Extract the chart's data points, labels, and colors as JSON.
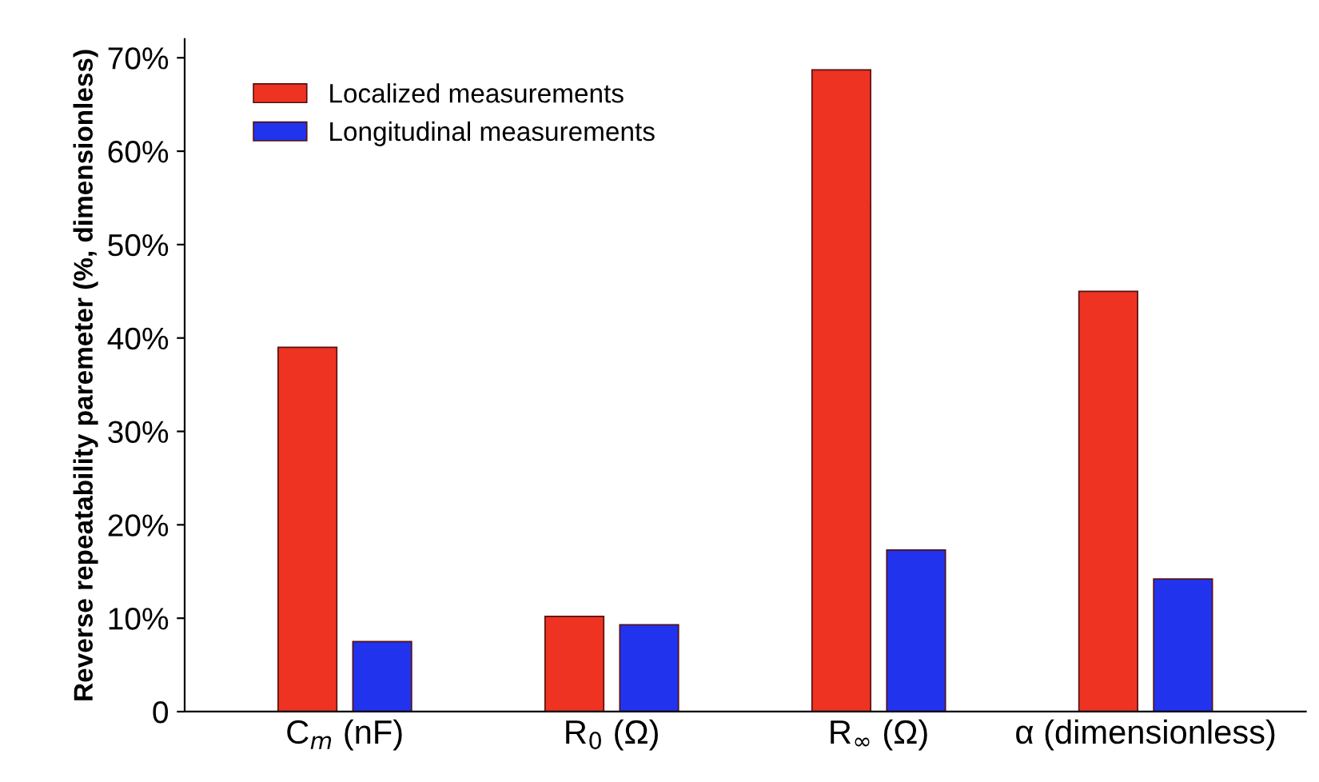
{
  "chart_data": {
    "type": "bar",
    "ylabel": "Reverse repeatability paremeter (%, dimensionless)",
    "categories": [
      "C$_{m}$ (nF)",
      "R$_{0}$ (Ω)",
      "R$_{∞}$ (Ω)",
      "α (dimensionless)"
    ],
    "series": [
      {
        "name": "Localized measurements",
        "color": "#ee3322",
        "values": [
          39,
          10.2,
          68.7,
          45
        ]
      },
      {
        "name": "Longitudinal measurements",
        "color": "#2233ee",
        "values": [
          7.5,
          9.3,
          17.3,
          14.2
        ]
      }
    ],
    "ylim": [
      0,
      72
    ],
    "yticks": [
      0,
      {
        "value": 10,
        "label": "10%"
      },
      {
        "value": 20,
        "label": "20%"
      },
      {
        "value": 30,
        "label": "30%"
      },
      {
        "value": 40,
        "label": "40%"
      },
      {
        "value": 50,
        "label": "50%"
      },
      {
        "value": 60,
        "label": "60%"
      },
      {
        "value": 70,
        "label": "70%"
      }
    ],
    "legend": "top left",
    "grid": false
  }
}
